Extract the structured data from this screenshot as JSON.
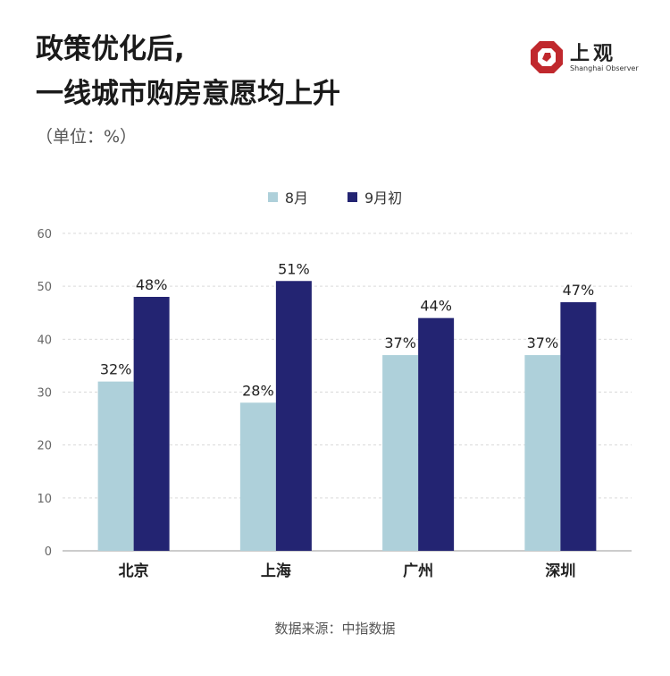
{
  "title_lines": [
    "政策优化后,",
    "一线城市购房意愿均上升"
  ],
  "unit": "（单位：%）",
  "logo": {
    "name": "上观",
    "subtitle": "Shanghai Observer"
  },
  "source": "数据来源：中指数据",
  "colors": {
    "series1": "#aed0da",
    "series2": "#232472",
    "grid": "#d9d9d9",
    "logo": "#c0282d"
  },
  "chart_data": {
    "type": "bar",
    "categories": [
      "北京",
      "上海",
      "广州",
      "深圳"
    ],
    "series": [
      {
        "name": "8月",
        "values": [
          32,
          28,
          37,
          37
        ],
        "labels": [
          "32%",
          "28%",
          "37%",
          "37%"
        ]
      },
      {
        "name": "9月初",
        "values": [
          48,
          51,
          44,
          47
        ],
        "labels": [
          "48%",
          "51%",
          "44%",
          "47%"
        ]
      }
    ],
    "yticks": [
      "0",
      "10",
      "20",
      "30",
      "40",
      "50",
      "60"
    ],
    "ylim": [
      0,
      60
    ],
    "grid": true,
    "legend_position": "top-center"
  }
}
